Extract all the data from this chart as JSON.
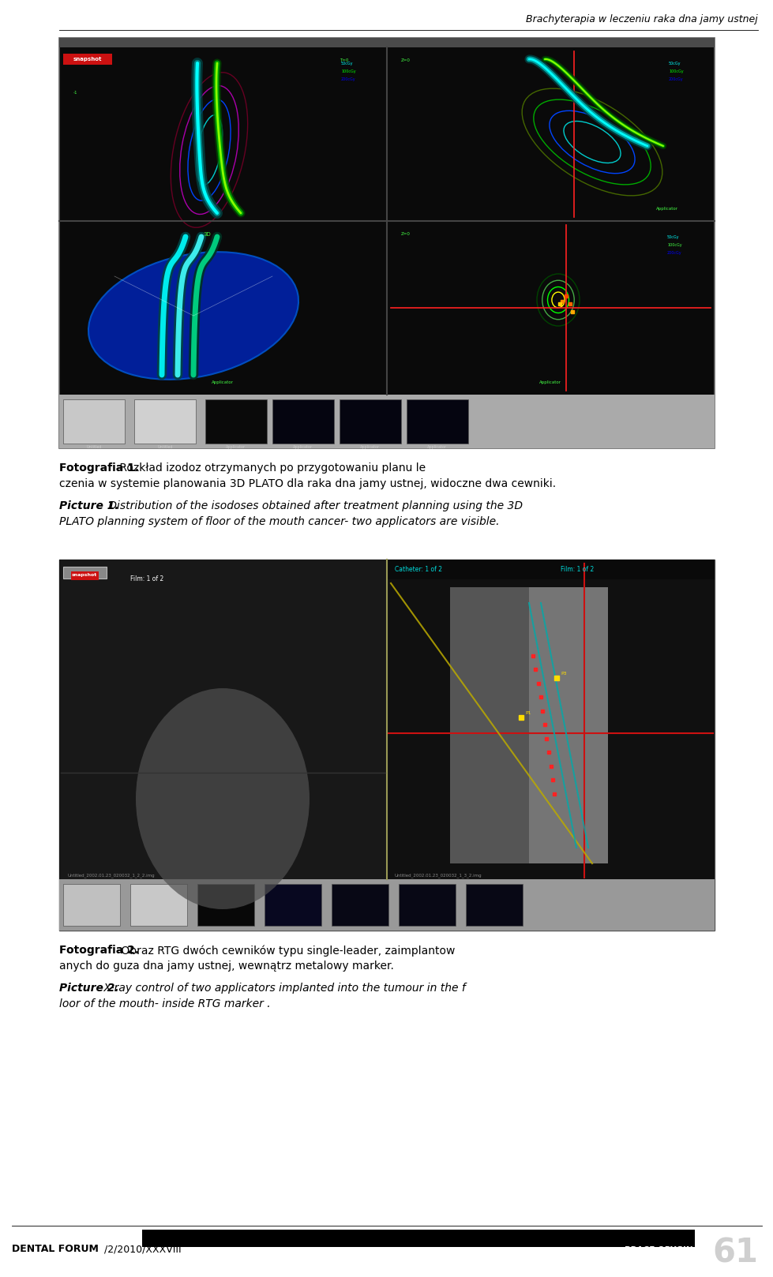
{
  "page_width": 9.6,
  "page_height": 15.77,
  "bg_color": "#ffffff",
  "header_text": "Brachyterapia w leczeniu raka dna jamy ustnej",
  "header_color": "#000000",
  "caption1_bold": "Fotografia 1.",
  "caption1_normal": " Rozkład izodoz otrzymanych po przygotowaniu planu leczenia w systemie planowania 3D PLATO dla raka dna jamy ustnej, widoczne dwa cewniki.",
  "caption1_italic_bold": "Picture 1.",
  "caption1_italic_normal": " Distribution of the isodoses obtained after treatment planning using the 3D PLATO planning system of floor of the mouth cancer- two applicators are visible.",
  "caption2_bold": "Fotografia 2.",
  "caption2_normal": " Obraz RTG dwóch cewników typu single-leader, zaimplantowanych do guza dna jamy ustnej, wewnątrz metalowy marker.",
  "caption2_italic_bold": "Picture 2.",
  "caption2_italic_normal": " X-ray control of two applicators implanted into the tumour in the floor of the mouth- inside RTG marker .",
  "footer_left_bold": "DENTAL FORUM",
  "footer_left_normal": " /2/2010/XXXVIII",
  "footer_right": "PRACE ORYGINALNE",
  "footer_page_num": "61"
}
